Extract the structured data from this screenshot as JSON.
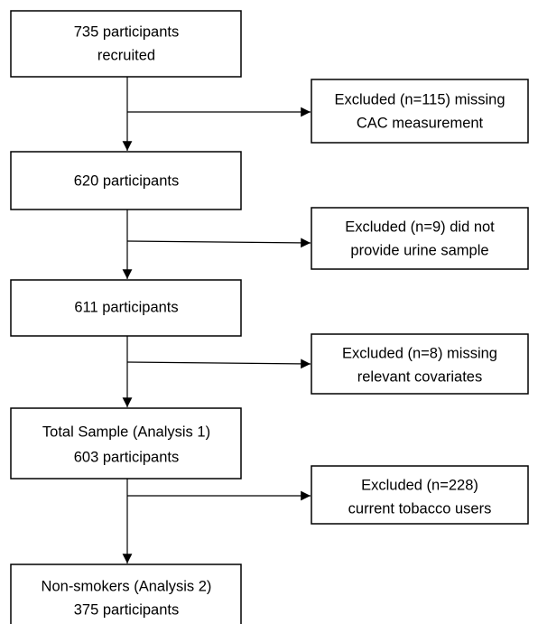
{
  "boxes": [
    {
      "lines": [
        "735 participants",
        "recruited"
      ]
    },
    {
      "lines": [
        "620 participants"
      ]
    },
    {
      "lines": [
        "611 participants"
      ]
    },
    {
      "lines": [
        "Total Sample (Analysis 1)",
        "603 participants"
      ]
    },
    {
      "lines": [
        "Non-smokers (Analysis 2)",
        "375 participants"
      ]
    }
  ],
  "exclusions": [
    {
      "lines": [
        "Excluded (n=115) missing",
        "CAC measurement"
      ]
    },
    {
      "lines": [
        "Excluded (n=9) did not",
        "provide urine sample"
      ]
    },
    {
      "lines": [
        "Excluded (n=8) missing",
        "relevant covariates"
      ]
    },
    {
      "lines": [
        "Excluded (n=228)",
        "current tobacco users"
      ]
    }
  ]
}
